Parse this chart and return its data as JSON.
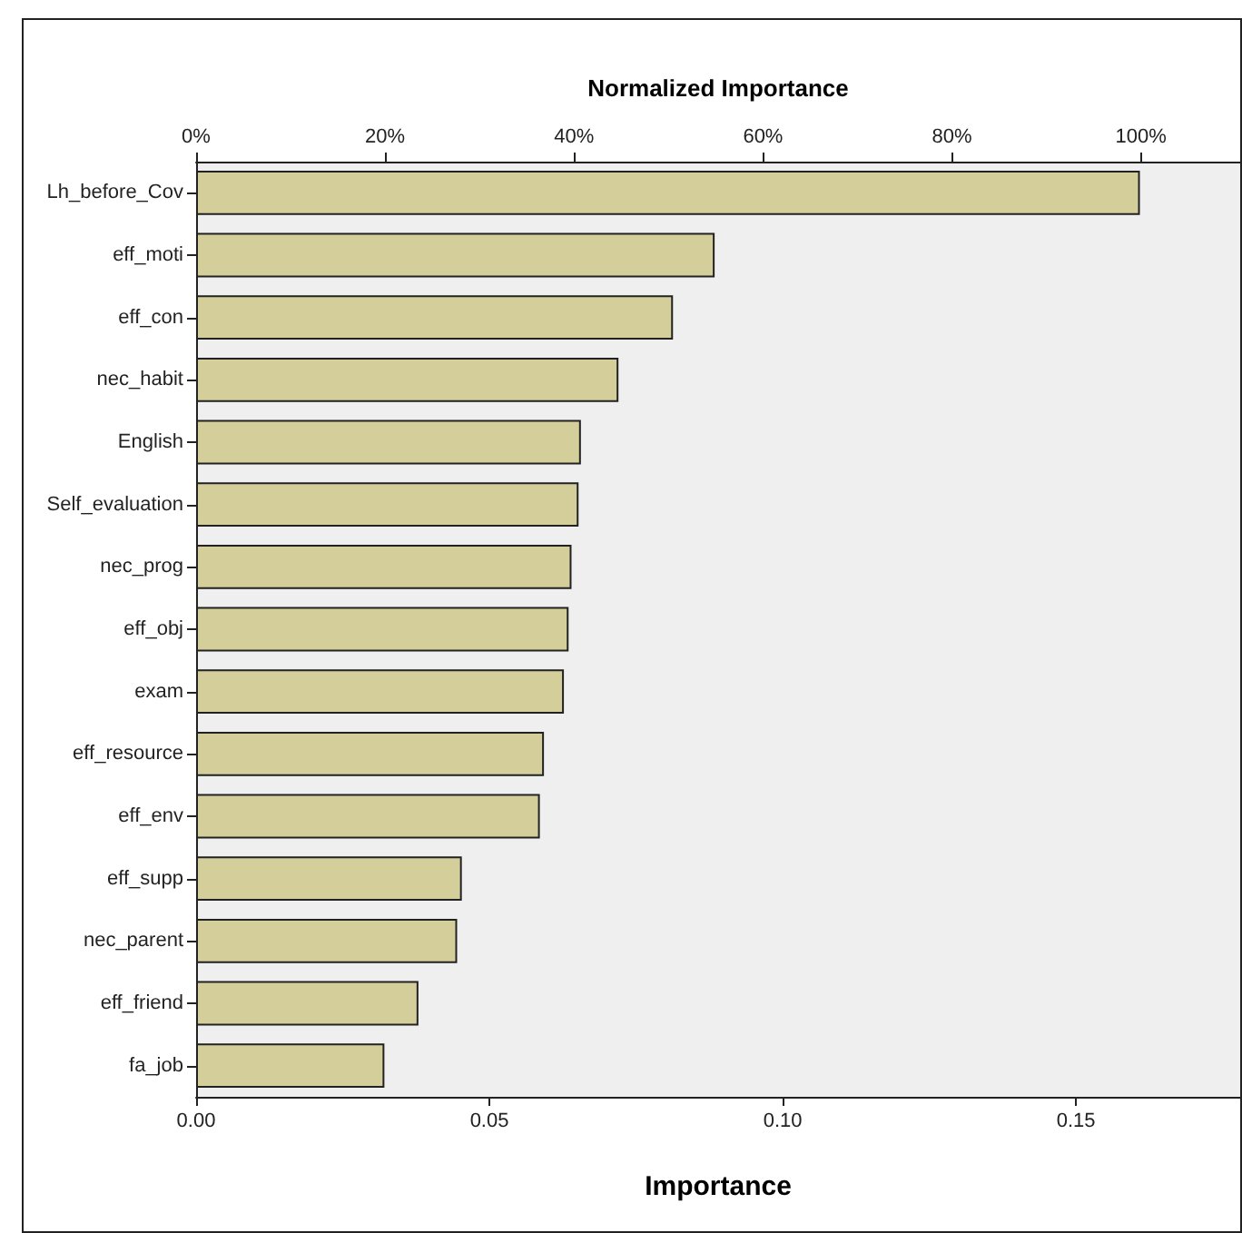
{
  "chart_data": {
    "type": "bar",
    "orientation": "horizontal",
    "xlabel": "Importance",
    "x2label": "Normalized Importance",
    "categories": [
      "Lh_before_Cov",
      "eff_moti",
      "eff_con",
      "nec_habit",
      "English",
      "Self_evaluation",
      "nec_prog",
      "eff_obj",
      "exam",
      "eff_resource",
      "eff_env",
      "eff_supp",
      "nec_parent",
      "eff_friend",
      "fa_job"
    ],
    "values": [
      0.1609,
      0.0884,
      0.0813,
      0.072,
      0.0656,
      0.0652,
      0.064,
      0.0635,
      0.0627,
      0.0593,
      0.0586,
      0.0453,
      0.0445,
      0.0379,
      0.0321
    ],
    "color": "#d3ce9a",
    "xlim": [
      0,
      0.178
    ],
    "xticks": [
      {
        "value": 0,
        "label": "0.00"
      },
      {
        "value": 0.05,
        "label": "0.05"
      },
      {
        "value": 0.1,
        "label": "0.10"
      },
      {
        "value": 0.15,
        "label": "0.15"
      }
    ],
    "x2lim": [
      0,
      110.5
    ],
    "x2ticks": [
      {
        "value": 0,
        "label": "0%"
      },
      {
        "value": 20,
        "label": "20%"
      },
      {
        "value": 40,
        "label": "40%"
      },
      {
        "value": 60,
        "label": "60%"
      },
      {
        "value": 80,
        "label": "80%"
      },
      {
        "value": 100,
        "label": "100%"
      }
    ],
    "grid": false
  }
}
